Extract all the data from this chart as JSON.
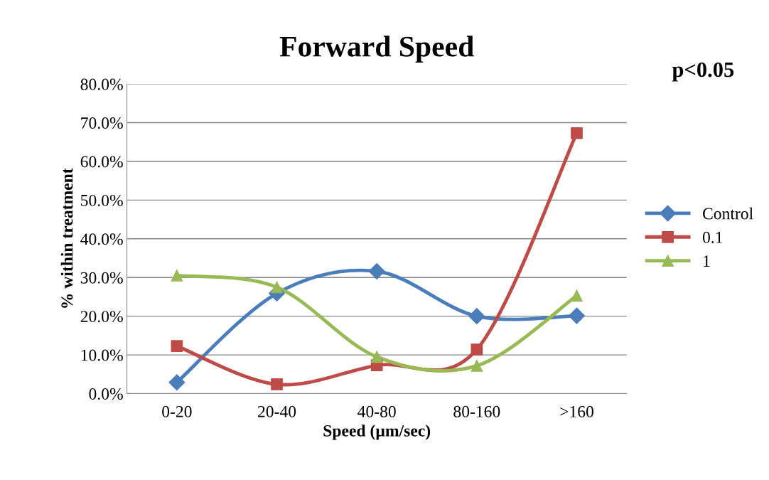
{
  "chart_data": {
    "type": "line",
    "title": "Forward Speed",
    "xlabel": "Speed (µm/sec)",
    "ylabel": "% within treatment",
    "categories": [
      "0-20",
      "20-40",
      "40-80",
      "80-160",
      ">160"
    ],
    "series": [
      {
        "name": "Control",
        "color": "#4a7ebb",
        "marker": "diamond",
        "values": [
          2.9,
          25.9,
          31.6,
          20.0,
          20.1
        ]
      },
      {
        "name": "0.1",
        "color": "#be4b48",
        "marker": "square",
        "values": [
          12.3,
          2.4,
          7.3,
          11.4,
          67.3
        ]
      },
      {
        "name": "1",
        "color": "#98b954",
        "marker": "triangle",
        "values": [
          30.5,
          27.5,
          9.5,
          7.2,
          25.3
        ]
      }
    ],
    "ylim": [
      0,
      80
    ],
    "yticks": [
      {
        "value": 0,
        "label": "0.0%"
      },
      {
        "value": 10,
        "label": "10.0%"
      },
      {
        "value": 20,
        "label": "20.0%"
      },
      {
        "value": 30,
        "label": "30.0%"
      },
      {
        "value": 40,
        "label": "40.0%"
      },
      {
        "value": 50,
        "label": "50.0%"
      },
      {
        "value": 60,
        "label": "60.0%"
      },
      {
        "value": 70,
        "label": "70.0%"
      },
      {
        "value": 80,
        "label": "80.0%"
      }
    ],
    "grid": "y",
    "legend": "right",
    "line_style": "solid",
    "annotations": [
      "p<0.05"
    ]
  }
}
